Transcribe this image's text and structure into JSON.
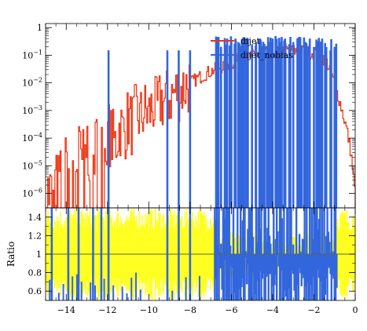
{
  "chart_data": {
    "type": "line",
    "top_panel": {
      "yscale": "log",
      "ylim": [
        3e-07,
        1.4
      ],
      "xlim": [
        -15,
        0
      ],
      "y_ticks": [
        1e-06,
        1e-05,
        0.0001,
        0.001,
        0.01,
        0.1,
        1
      ],
      "y_tick_labels": [
        "10^-6",
        "10^-5",
        "10^-4",
        "10^-3",
        "10^-2",
        "10^-1",
        "1"
      ],
      "legend": {
        "position": "top-right",
        "entries": [
          "dijet",
          "dijet_nobias"
        ]
      }
    },
    "bottom_panel": {
      "ylabel": "Ratio",
      "ylim": [
        0.5,
        1.5
      ],
      "y_ticks": [
        0.6,
        0.8,
        1.0,
        1.2,
        1.4
      ],
      "y_tick_labels": [
        "0.6",
        "0.8",
        "1",
        "1.2",
        "1.4"
      ],
      "reference_line": 1.0
    },
    "x_ticks": [
      -14,
      -12,
      -10,
      -8,
      -6,
      -4,
      -2,
      0
    ],
    "x_tick_labels": [
      "-14",
      "-12",
      "-10",
      "-8",
      "-6",
      "-4",
      "-2",
      "0"
    ],
    "series": [
      {
        "name": "dijet",
        "color": "#ee3311",
        "points": [
          [
            -14.8,
            1e-06
          ],
          [
            -14.6,
            3e-06
          ],
          [
            -14.4,
            2e-06
          ],
          [
            -14.2,
            5e-06
          ],
          [
            -14.0,
            1e-05
          ],
          [
            -13.8,
            4e-06
          ],
          [
            -13.6,
            8e-06
          ],
          [
            -13.4,
            3e-05
          ],
          [
            -13.2,
            1.5e-05
          ],
          [
            -13.0,
            6e-05
          ],
          [
            -12.8,
            2e-05
          ],
          [
            -12.6,
            4e-05
          ],
          [
            -12.4,
            0.0001
          ],
          [
            -12.2,
            5e-05
          ],
          [
            -12.0,
            0.0002
          ],
          [
            -11.8,
            0.0001
          ],
          [
            -11.6,
            6e-05
          ],
          [
            -11.4,
            0.0003
          ],
          [
            -11.2,
            0.00015
          ],
          [
            -11.0,
            0.0005
          ],
          [
            -10.8,
            0.0003
          ],
          [
            -10.6,
            0.0008
          ],
          [
            -10.4,
            0.0005
          ],
          [
            -10.2,
            0.001
          ],
          [
            -10.0,
            0.0007
          ],
          [
            -9.8,
            0.0015
          ],
          [
            -9.6,
            0.001
          ],
          [
            -9.4,
            0.0025
          ],
          [
            -9.2,
            0.002
          ],
          [
            -9.0,
            0.003
          ],
          [
            -8.8,
            0.004
          ],
          [
            -8.6,
            0.005
          ],
          [
            -8.4,
            0.006
          ],
          [
            -8.2,
            0.008
          ],
          [
            -8.0,
            0.01
          ],
          [
            -7.8,
            0.012
          ],
          [
            -7.6,
            0.015
          ],
          [
            -7.4,
            0.018
          ],
          [
            -7.2,
            0.022
          ],
          [
            -7.0,
            0.026
          ],
          [
            -6.8,
            0.03
          ],
          [
            -6.6,
            0.035
          ],
          [
            -6.4,
            0.04
          ],
          [
            -6.2,
            0.046
          ],
          [
            -6.0,
            0.052
          ],
          [
            -5.8,
            0.06
          ],
          [
            -5.6,
            0.068
          ],
          [
            -5.4,
            0.075
          ],
          [
            -5.2,
            0.085
          ],
          [
            -5.0,
            0.095
          ],
          [
            -4.8,
            0.105
          ],
          [
            -4.6,
            0.115
          ],
          [
            -4.4,
            0.125
          ],
          [
            -4.2,
            0.13
          ],
          [
            -4.0,
            0.135
          ],
          [
            -3.8,
            0.14
          ],
          [
            -3.6,
            0.142
          ],
          [
            -3.4,
            0.145
          ],
          [
            -3.2,
            0.145
          ],
          [
            -3.0,
            0.143
          ],
          [
            -2.8,
            0.14
          ],
          [
            -2.6,
            0.138
          ],
          [
            -2.4,
            0.135
          ],
          [
            -2.2,
            0.13
          ],
          [
            -2.0,
            0.125
          ],
          [
            -1.8,
            0.11
          ],
          [
            -1.6,
            0.09
          ],
          [
            -1.4,
            0.06
          ],
          [
            -1.2,
            0.03
          ],
          [
            -1.0,
            0.01
          ],
          [
            -0.8,
            0.003
          ],
          [
            -0.6,
            0.0008
          ],
          [
            -0.4,
            0.0002
          ],
          [
            -0.2,
            3e-05
          ],
          [
            0.0,
            1e-06
          ]
        ]
      },
      {
        "name": "dijet_nobias",
        "color": "#3366dd",
        "points": [
          [
            -11.95,
            0.15
          ],
          [
            -9.1,
            0.15
          ],
          [
            -8.55,
            0.15
          ],
          [
            -8.0,
            0.15
          ],
          [
            -6.7,
            0.3
          ],
          [
            -6.5,
            0.2
          ],
          [
            -6.2,
            0.4
          ],
          [
            -6.0,
            0.3
          ],
          [
            -5.8,
            0.4
          ],
          [
            -5.6,
            0.2
          ],
          [
            -5.4,
            0.3
          ],
          [
            -5.2,
            0.4
          ],
          [
            -5.0,
            0.25
          ],
          [
            -4.8,
            0.3
          ],
          [
            -4.6,
            0.4
          ],
          [
            -4.4,
            0.2
          ],
          [
            -4.2,
            0.3
          ],
          [
            -4.0,
            0.4
          ],
          [
            -3.8,
            0.2
          ],
          [
            -3.6,
            0.3
          ],
          [
            -3.4,
            0.4
          ],
          [
            -3.2,
            0.25
          ],
          [
            -3.0,
            0.3
          ],
          [
            -2.8,
            0.4
          ],
          [
            -2.6,
            0.2
          ],
          [
            -2.4,
            0.3
          ],
          [
            -2.2,
            0.4
          ],
          [
            -2.0,
            0.2
          ],
          [
            -1.8,
            0.3
          ],
          [
            -1.6,
            0.4
          ],
          [
            -1.4,
            0.2
          ],
          [
            -1.2,
            0.15
          ],
          [
            -1.0,
            0.2
          ]
        ]
      }
    ]
  }
}
